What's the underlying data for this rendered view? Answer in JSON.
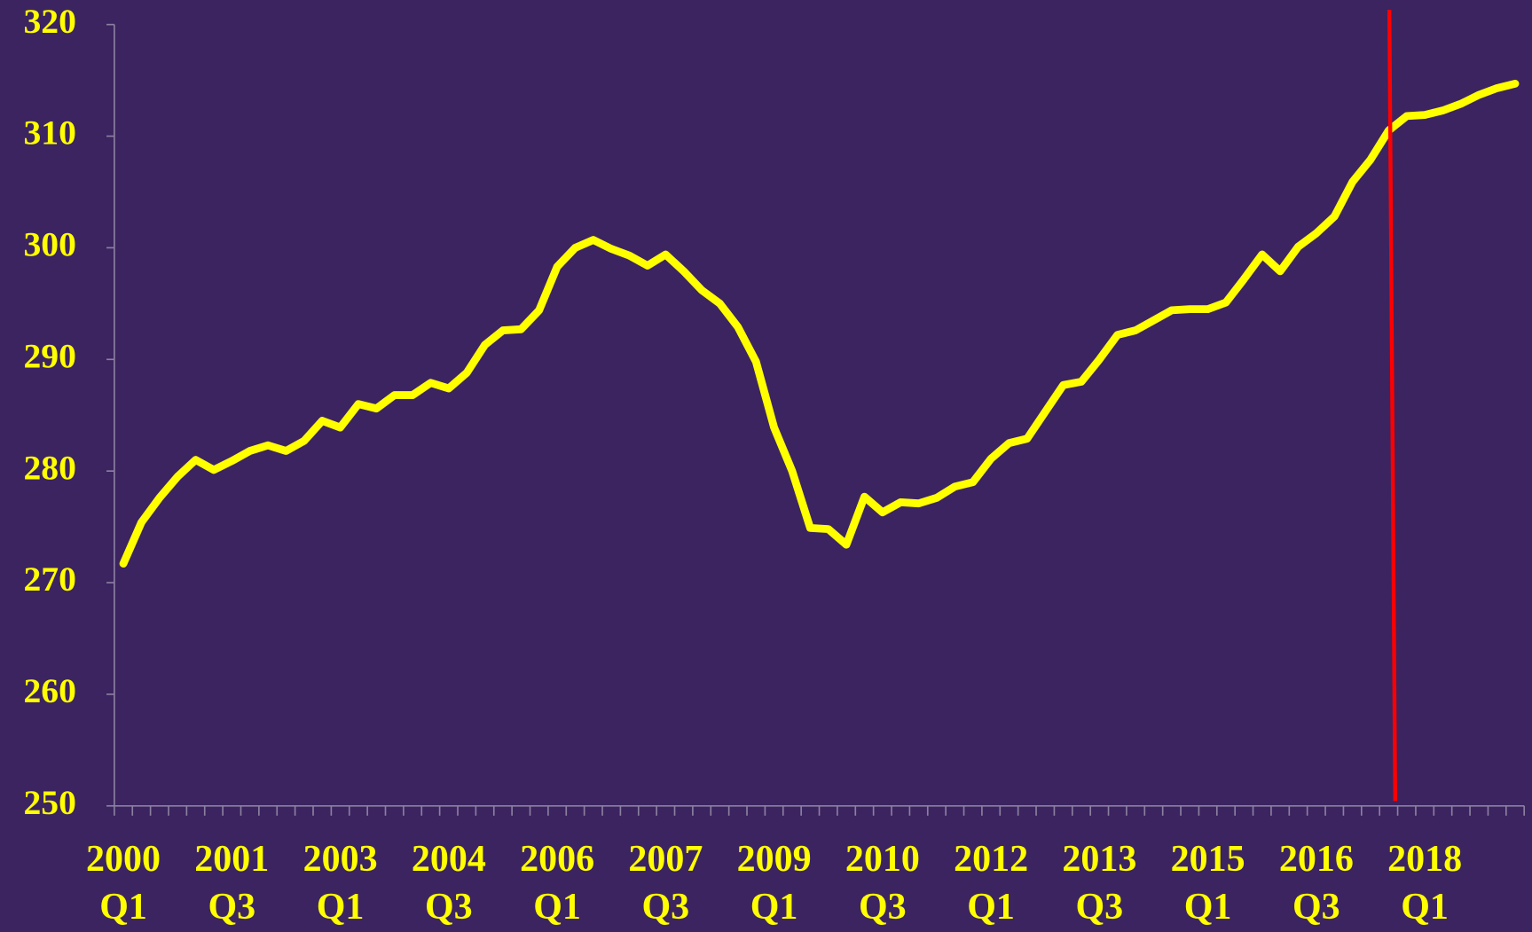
{
  "chart_data": {
    "type": "line",
    "categories": [
      "2000 Q1",
      null,
      null,
      null,
      null,
      null,
      "2001 Q3",
      null,
      null,
      null,
      null,
      null,
      "2003 Q1",
      null,
      null,
      null,
      null,
      null,
      "2004 Q3",
      null,
      null,
      null,
      null,
      null,
      "2006 Q1",
      null,
      null,
      null,
      null,
      null,
      "2007 Q3",
      null,
      null,
      null,
      null,
      null,
      "2009 Q1",
      null,
      null,
      null,
      null,
      null,
      "2010 Q3",
      null,
      null,
      null,
      null,
      null,
      "2012 Q1",
      null,
      null,
      null,
      null,
      null,
      "2013 Q3",
      null,
      null,
      null,
      null,
      null,
      "2015 Q1",
      null,
      null,
      null,
      null,
      null,
      "2016 Q3",
      null,
      null,
      null,
      null,
      null,
      "2018 Q1",
      null,
      null,
      null,
      null,
      null
    ],
    "values": [
      271.7,
      275.4,
      277.6,
      279.5,
      281.0,
      280.1,
      280.9,
      281.8,
      282.3,
      281.8,
      282.7,
      284.5,
      283.9,
      286.0,
      285.6,
      286.8,
      286.8,
      287.9,
      287.4,
      288.8,
      291.3,
      292.6,
      292.7,
      294.4,
      298.3,
      300.0,
      300.7,
      299.9,
      299.3,
      298.4,
      299.4,
      297.9,
      296.2,
      295.0,
      292.9,
      289.8,
      283.9,
      280.0,
      274.9,
      274.8,
      273.4,
      277.7,
      276.3,
      277.2,
      277.1,
      277.6,
      278.6,
      279.0,
      281.1,
      282.5,
      282.9,
      285.3,
      287.7,
      288.0,
      290.0,
      292.2,
      292.6,
      293.5,
      294.4,
      294.5,
      294.5,
      295.1,
      297.2,
      299.4,
      297.9,
      300.1,
      301.3,
      302.8,
      305.9,
      307.9,
      310.5,
      311.8,
      311.9,
      312.3,
      312.9,
      313.7,
      314.3,
      314.7
    ],
    "color": "#ffff00",
    "ylim": [
      250,
      320
    ],
    "yticks": [
      250,
      260,
      270,
      280,
      290,
      300,
      310,
      320
    ]
  }
}
